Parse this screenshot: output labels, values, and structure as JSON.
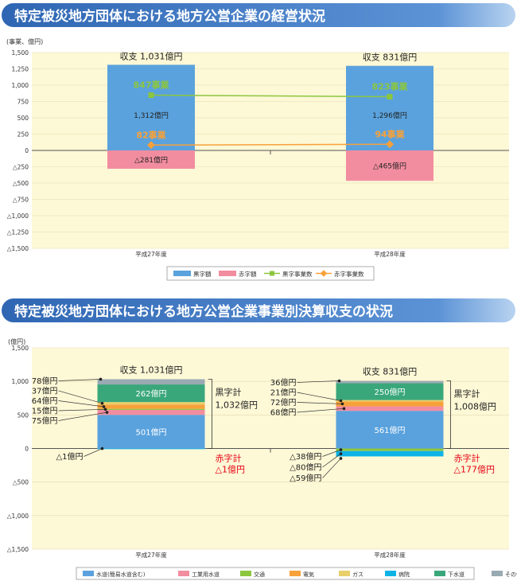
{
  "colors": {
    "banner_text": "#ffffff",
    "banner_bg": "#3b73bd",
    "plot_bg": "#fdf8d6",
    "profit": "#5aa2dd",
    "loss": "#f28da0",
    "profit_count_line": "#8cc63f",
    "loss_count_line": "#f7a13a",
    "red_text": "#e60012"
  },
  "chart_data": [
    {
      "type": "bar",
      "title": "特定被災地方団体における地方公営企業の経営状況",
      "ylabel": "(事業、億円)",
      "ylim": [
        -1500,
        1500
      ],
      "yticks": [
        "1,500",
        "1,250",
        "1,000",
        "750",
        "500",
        "250",
        "0",
        "△250",
        "△500",
        "△750",
        "△1,000",
        "△1,250",
        "△1,500"
      ],
      "ytick_values": [
        1500,
        1250,
        1000,
        750,
        500,
        250,
        0,
        -250,
        -500,
        -750,
        -1000,
        -1250,
        -1500
      ],
      "categories": [
        "平成27年度",
        "平成28年度"
      ],
      "totals": [
        "収支 1,031億円",
        "収支 831億円"
      ],
      "series": [
        {
          "name": "黒字額",
          "kind": "bar",
          "values": [
            1312,
            1296
          ],
          "labels": [
            "1,312億円",
            "1,296億円"
          ]
        },
        {
          "name": "赤字額",
          "kind": "bar",
          "values": [
            -281,
            -465
          ],
          "labels": [
            "△281億円",
            "△465億円"
          ]
        },
        {
          "name": "黒字事業数",
          "kind": "line",
          "values": [
            847,
            823
          ],
          "labels": [
            "847事業",
            "823事業"
          ]
        },
        {
          "name": "赤字事業数",
          "kind": "line",
          "values": [
            82,
            94
          ],
          "labels": [
            "82事業",
            "94事業"
          ]
        }
      ],
      "legend": [
        "黒字額",
        "赤字額",
        "黒字事業数",
        "赤字事業数"
      ],
      "legend_position": "bottom"
    },
    {
      "type": "bar",
      "title": "特定被災地方団体における地方公営企業事業別決算収支の状況",
      "ylabel": "(億円)",
      "ylim": [
        -1500,
        1500
      ],
      "yticks": [
        "1,500",
        "1,000",
        "500",
        "0",
        "△500",
        "△1,000",
        "△1,500"
      ],
      "ytick_values": [
        1500,
        1000,
        500,
        0,
        -500,
        -1000,
        -1500
      ],
      "categories": [
        "平成27年度",
        "平成28年度"
      ],
      "totals": [
        "収支 1,031億円",
        "収支 831億円"
      ],
      "series": [
        {
          "name": "水道(簡易水道含む)",
          "values": [
            501,
            561
          ],
          "labels": [
            "501億円",
            "561億円"
          ],
          "side": [
            "inside",
            "inside"
          ]
        },
        {
          "name": "工業用水道",
          "values": [
            75,
            68
          ],
          "labels": [
            "75億円",
            "68億円"
          ],
          "side": [
            "left",
            "left"
          ]
        },
        {
          "name": "交通",
          "values": [
            15,
            -38
          ],
          "labels": [
            "15億円",
            "△38億円"
          ],
          "side": [
            "left",
            "left"
          ]
        },
        {
          "name": "電気",
          "values": [
            64,
            72
          ],
          "labels": [
            "64億円",
            "72億円"
          ],
          "side": [
            "left",
            "left"
          ]
        },
        {
          "name": "ガス",
          "values": [
            37,
            21
          ],
          "labels": [
            "37億円",
            "21億円"
          ],
          "side": [
            "left",
            "left"
          ]
        },
        {
          "name": "病院",
          "values": [
            -1,
            -80
          ],
          "labels": [
            "△1億円",
            "△80億円"
          ],
          "side": [
            "left",
            "left"
          ]
        },
        {
          "name": "下水道",
          "values": [
            262,
            250
          ],
          "labels": [
            "262億円",
            "250億円"
          ],
          "side": [
            "inside",
            "inside"
          ]
        },
        {
          "name": "その他",
          "values": [
            78,
            36
          ],
          "labels": [
            "78億円",
            "36億円"
          ],
          "side": [
            "left",
            "left"
          ]
        }
      ],
      "profit_total": {
        "label": "黒字計",
        "values": [
          "1,032億円",
          "1,008億円"
        ]
      },
      "loss_total": {
        "label": "赤字計",
        "values": [
          "△1億円",
          "△177億円"
        ]
      },
      "negative_extra": {
        "values": [
          0,
          -59
        ],
        "labels": [
          "",
          "△59億円"
        ]
      },
      "legend": [
        "水道(簡易水道含む)",
        "工業用水道",
        "交通",
        "電気",
        "ガス",
        "病院",
        "下水道",
        "その他"
      ],
      "legend_position": "bottom"
    }
  ]
}
